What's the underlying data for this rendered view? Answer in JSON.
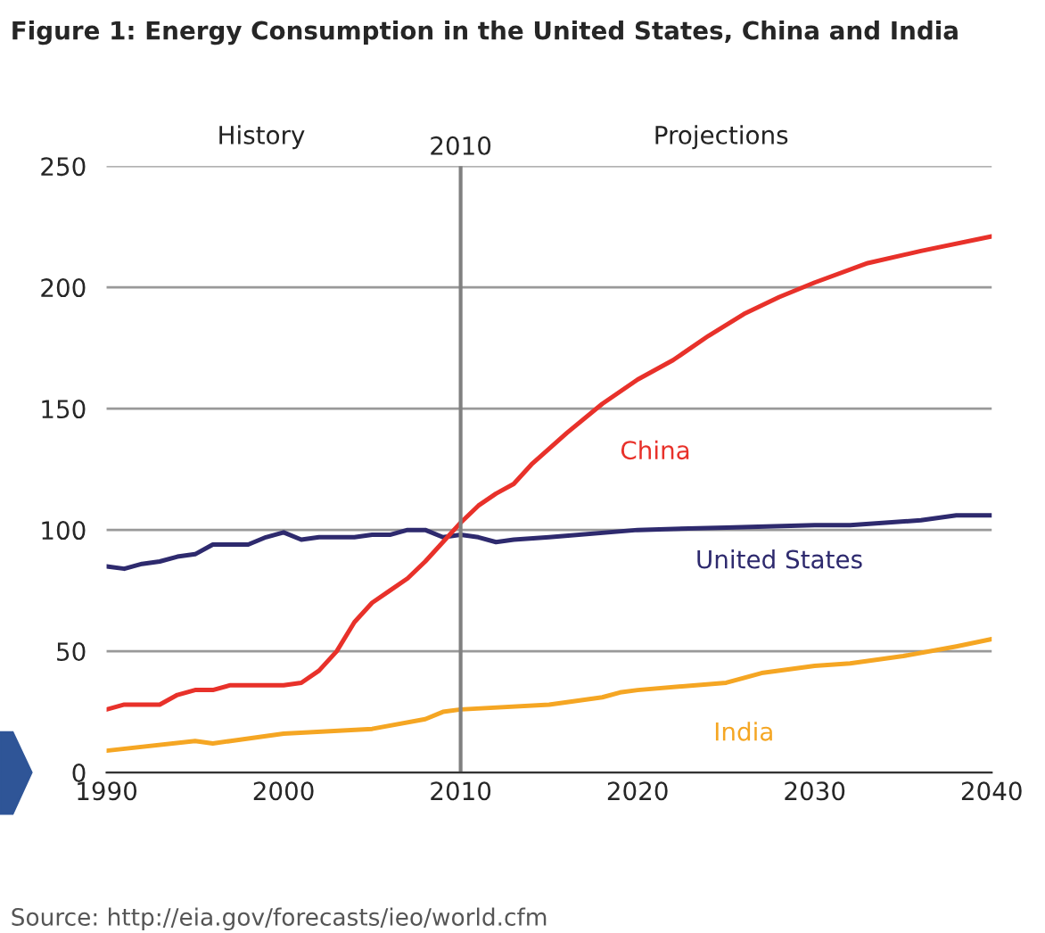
{
  "chart_data": {
    "type": "line",
    "title": "Figure 1: Energy Consumption in the United States, China and India",
    "xlim": [
      1990,
      2040
    ],
    "xticks": [
      1990,
      2000,
      2010,
      2020,
      2030,
      2040
    ],
    "ylim": [
      0,
      250
    ],
    "yticks": [
      0,
      50,
      100,
      150,
      200,
      250
    ],
    "grid": "y",
    "legend": false,
    "marker": "none",
    "line_style": "solid",
    "series": [
      {
        "name": "United States",
        "color": "#2e2a6e",
        "x": [
          1990,
          1991,
          1992,
          1993,
          1994,
          1995,
          1996,
          1997,
          1998,
          1999,
          2000,
          2001,
          2002,
          2003,
          2004,
          2005,
          2006,
          2007,
          2008,
          2009,
          2010,
          2011,
          2012,
          2013,
          2015,
          2020,
          2025,
          2030,
          2032,
          2034,
          2036,
          2038,
          2040
        ],
        "values": [
          85,
          84,
          86,
          87,
          89,
          90,
          94,
          94,
          94,
          97,
          99,
          96,
          97,
          97,
          97,
          98,
          98,
          100,
          100,
          97,
          98,
          97,
          95,
          96,
          97,
          100,
          101,
          102,
          102,
          103,
          104,
          106,
          106
        ]
      },
      {
        "name": "China",
        "color": "#e8312a",
        "x": [
          1990,
          1991,
          1992,
          1993,
          1994,
          1995,
          1996,
          1997,
          1998,
          1999,
          2000,
          2001,
          2002,
          2003,
          2004,
          2005,
          2006,
          2007,
          2008,
          2009,
          2010,
          2011,
          2012,
          2013,
          2014,
          2016,
          2018,
          2020,
          2022,
          2024,
          2026,
          2028,
          2030,
          2033,
          2036,
          2040
        ],
        "values": [
          26,
          28,
          28,
          28,
          32,
          34,
          34,
          36,
          36,
          36,
          36,
          37,
          42,
          50,
          62,
          70,
          75,
          80,
          87,
          95,
          103,
          110,
          115,
          119,
          127,
          140,
          152,
          162,
          170,
          180,
          189,
          196,
          202,
          210,
          215,
          221
        ]
      },
      {
        "name": "India",
        "color": "#f5a623",
        "x": [
          1990,
          1995,
          1996,
          1997,
          2000,
          2005,
          2008,
          2009,
          2010,
          2015,
          2018,
          2019,
          2020,
          2025,
          2027,
          2030,
          2032,
          2035,
          2038,
          2040
        ],
        "values": [
          9,
          13,
          12,
          13,
          16,
          18,
          22,
          25,
          26,
          28,
          31,
          33,
          34,
          37,
          41,
          44,
          45,
          48,
          52,
          55
        ]
      }
    ],
    "ref_lines": [
      {
        "axis": "x",
        "value": 2010,
        "label": "2010",
        "color": "#808080"
      }
    ],
    "annotations": [
      "History",
      "Projections",
      "Source: http://eia.gov/forecasts/ieo/world.cfm"
    ]
  }
}
